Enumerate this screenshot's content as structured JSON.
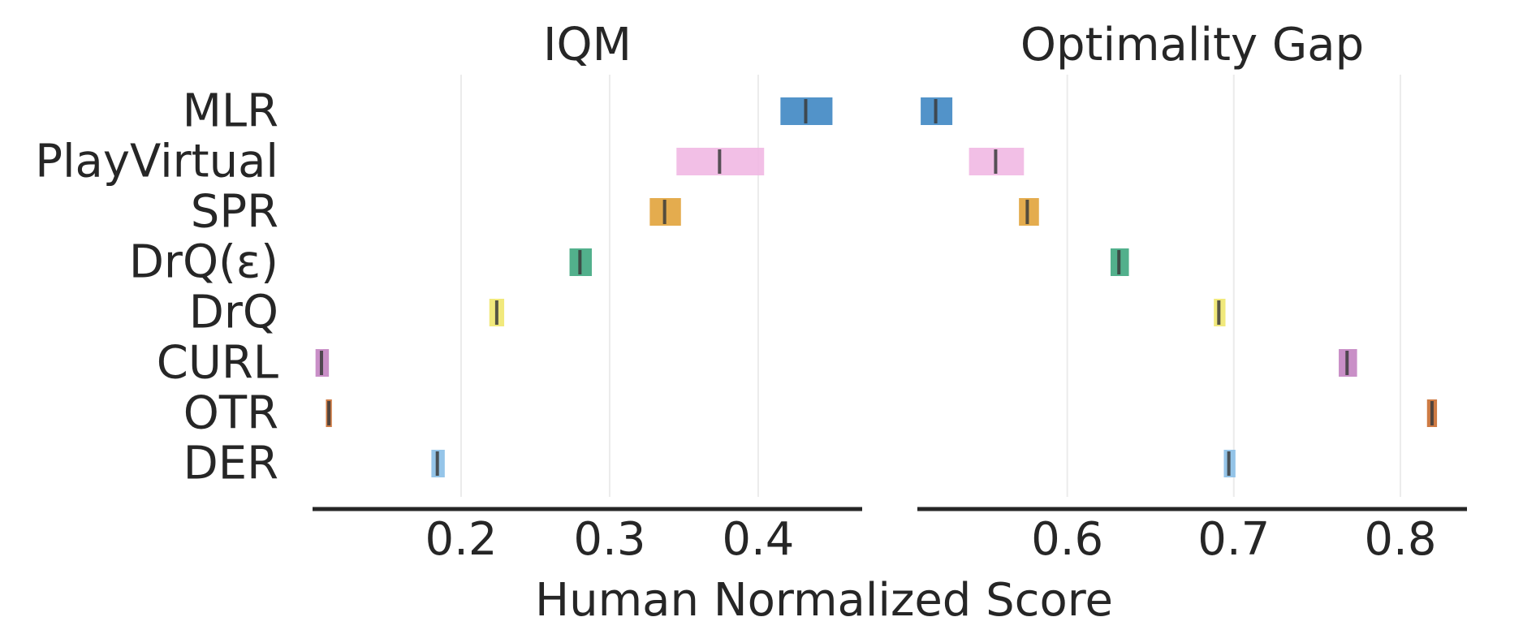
{
  "chart_data": {
    "type": "interval",
    "xlabel": "Human Normalized Score",
    "methods": [
      "MLR",
      "PlayVirtual",
      "SPR",
      "DrQ(ε)",
      "DrQ",
      "CURL",
      "OTR",
      "DER"
    ],
    "colors": {
      "MLR": "#3a84c2",
      "PlayVirtual": "#f0b6e2",
      "SPR": "#e0a036",
      "DrQ(ε)": "#3aa57c",
      "DrQ": "#efe66a",
      "CURL": "#c27fbf",
      "OTR": "#c7692a",
      "DER": "#86bde6"
    },
    "median_color": "#3b3b3b",
    "grid": true,
    "panels": [
      {
        "title": "IQM",
        "xlim": [
          0.1,
          0.47
        ],
        "xticks": [
          0.2,
          0.3,
          0.4
        ],
        "xtick_labels": [
          "0.2",
          "0.3",
          "0.4"
        ],
        "intervals": [
          {
            "method": "MLR",
            "low": 0.415,
            "point": 0.432,
            "high": 0.45
          },
          {
            "method": "PlayVirtual",
            "low": 0.345,
            "point": 0.374,
            "high": 0.404
          },
          {
            "method": "SPR",
            "low": 0.327,
            "point": 0.337,
            "high": 0.348
          },
          {
            "method": "DrQ(ε)",
            "low": 0.273,
            "point": 0.28,
            "high": 0.288
          },
          {
            "method": "DrQ",
            "low": 0.219,
            "point": 0.224,
            "high": 0.229
          },
          {
            "method": "CURL",
            "low": 0.102,
            "point": 0.106,
            "high": 0.111
          },
          {
            "method": "OTR",
            "low": 0.109,
            "point": 0.111,
            "high": 0.113
          },
          {
            "method": "DER",
            "low": 0.18,
            "point": 0.184,
            "high": 0.189
          }
        ]
      },
      {
        "title": "Optimality Gap",
        "xlim": [
          0.51,
          0.84
        ],
        "xticks": [
          0.6,
          0.7,
          0.8
        ],
        "xtick_labels": [
          "0.6",
          "0.7",
          "0.8"
        ],
        "intervals": [
          {
            "method": "MLR",
            "low": 0.512,
            "point": 0.521,
            "high": 0.531
          },
          {
            "method": "PlayVirtual",
            "low": 0.541,
            "point": 0.557,
            "high": 0.574
          },
          {
            "method": "SPR",
            "low": 0.571,
            "point": 0.576,
            "high": 0.583
          },
          {
            "method": "DrQ(ε)",
            "low": 0.626,
            "point": 0.631,
            "high": 0.637
          },
          {
            "method": "DrQ",
            "low": 0.688,
            "point": 0.691,
            "high": 0.695
          },
          {
            "method": "CURL",
            "low": 0.763,
            "point": 0.768,
            "high": 0.774
          },
          {
            "method": "OTR",
            "low": 0.816,
            "point": 0.819,
            "high": 0.822
          },
          {
            "method": "DER",
            "low": 0.694,
            "point": 0.697,
            "high": 0.701
          }
        ]
      }
    ]
  }
}
